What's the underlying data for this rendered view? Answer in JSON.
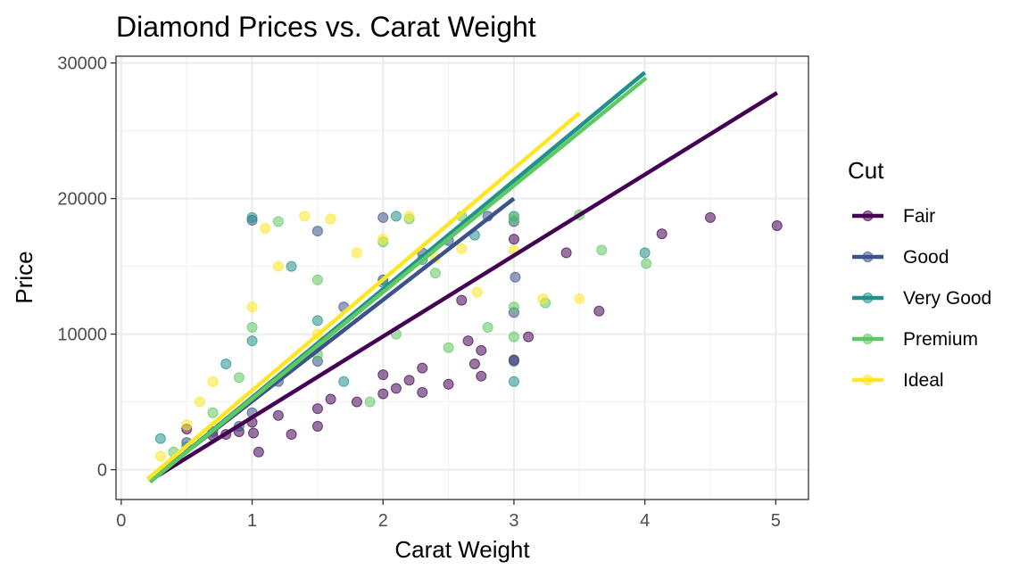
{
  "chart_data": {
    "type": "scatter",
    "title": "Diamond Prices vs. Carat Weight",
    "xlabel": "Carat Weight",
    "ylabel": "Price",
    "xlim": [
      -0.04,
      5.25
    ],
    "ylim": [
      -2200,
      30500
    ],
    "xticks": [
      0,
      1,
      2,
      3,
      4,
      5
    ],
    "yticks": [
      0,
      10000,
      20000,
      30000
    ],
    "grid": true,
    "legend": {
      "title": "Cut",
      "position": "right"
    },
    "series": [
      {
        "name": "Fair",
        "color": "#440154",
        "fit_line": [
          [
            0.22,
            -800
          ],
          [
            5.01,
            27800
          ]
        ],
        "points": [
          [
            0.5,
            3000
          ],
          [
            0.7,
            2500
          ],
          [
            0.8,
            2600
          ],
          [
            0.9,
            2800
          ],
          [
            1.0,
            3500
          ],
          [
            1.01,
            2700
          ],
          [
            1.05,
            1300
          ],
          [
            1.2,
            4000
          ],
          [
            1.3,
            2600
          ],
          [
            1.5,
            4500
          ],
          [
            1.5,
            3200
          ],
          [
            1.6,
            5200
          ],
          [
            1.8,
            5000
          ],
          [
            2.0,
            7000
          ],
          [
            2.0,
            5600
          ],
          [
            2.1,
            6000
          ],
          [
            2.2,
            6600
          ],
          [
            2.3,
            7500
          ],
          [
            2.3,
            5700
          ],
          [
            2.5,
            6300
          ],
          [
            2.6,
            12500
          ],
          [
            2.65,
            9500
          ],
          [
            2.7,
            7800
          ],
          [
            2.75,
            6900
          ],
          [
            2.75,
            8800
          ],
          [
            3.0,
            8100
          ],
          [
            3.0,
            17000
          ],
          [
            3.11,
            9800
          ],
          [
            3.4,
            16000
          ],
          [
            3.65,
            11700
          ],
          [
            4.13,
            17400
          ],
          [
            4.5,
            18600
          ],
          [
            5.01,
            18000
          ]
        ]
      },
      {
        "name": "Good",
        "color": "#3b528b",
        "fit_line": [
          [
            0.23,
            -700
          ],
          [
            3.0,
            20000
          ]
        ],
        "points": [
          [
            0.5,
            2000
          ],
          [
            0.7,
            2800
          ],
          [
            0.9,
            3200
          ],
          [
            1.0,
            4200
          ],
          [
            1.0,
            18400
          ],
          [
            1.2,
            6500
          ],
          [
            1.5,
            8000
          ],
          [
            1.5,
            17600
          ],
          [
            1.7,
            12000
          ],
          [
            2.0,
            14000
          ],
          [
            2.0,
            18600
          ],
          [
            2.3,
            16000
          ],
          [
            2.5,
            16900
          ],
          [
            2.8,
            18700
          ],
          [
            3.0,
            18300
          ],
          [
            3.0,
            11600
          ],
          [
            3.0,
            8000
          ],
          [
            3.01,
            14200
          ]
        ]
      },
      {
        "name": "Very Good",
        "color": "#21918c",
        "fit_line": [
          [
            0.22,
            -900
          ],
          [
            4.0,
            29300
          ]
        ],
        "points": [
          [
            0.3,
            2300
          ],
          [
            0.5,
            1700
          ],
          [
            0.8,
            7800
          ],
          [
            1.0,
            9500
          ],
          [
            1.0,
            18600
          ],
          [
            1.3,
            15000
          ],
          [
            1.5,
            11000
          ],
          [
            1.7,
            6500
          ],
          [
            2.0,
            13800
          ],
          [
            2.1,
            18700
          ],
          [
            2.3,
            15500
          ],
          [
            2.7,
            17300
          ],
          [
            3.0,
            6500
          ],
          [
            3.0,
            18700
          ],
          [
            4.0,
            16000
          ]
        ]
      },
      {
        "name": "Premium",
        "color": "#5ec962",
        "fit_line": [
          [
            0.22,
            -900
          ],
          [
            4.01,
            28900
          ]
        ],
        "points": [
          [
            0.4,
            1300
          ],
          [
            0.7,
            4200
          ],
          [
            0.9,
            6800
          ],
          [
            1.0,
            10500
          ],
          [
            1.2,
            18300
          ],
          [
            1.5,
            14000
          ],
          [
            1.5,
            8500
          ],
          [
            1.9,
            5000
          ],
          [
            2.0,
            16800
          ],
          [
            2.1,
            10000
          ],
          [
            2.2,
            18500
          ],
          [
            2.4,
            14500
          ],
          [
            2.5,
            9000
          ],
          [
            2.6,
            18700
          ],
          [
            2.8,
            10500
          ],
          [
            3.0,
            9800
          ],
          [
            3.0,
            12000
          ],
          [
            3.0,
            18500
          ],
          [
            3.24,
            12300
          ],
          [
            3.5,
            18800
          ],
          [
            3.67,
            16200
          ],
          [
            4.01,
            15200
          ]
        ]
      },
      {
        "name": "Ideal",
        "color": "#fde725",
        "fit_line": [
          [
            0.2,
            -700
          ],
          [
            3.5,
            26300
          ]
        ],
        "points": [
          [
            0.3,
            1000
          ],
          [
            0.5,
            3300
          ],
          [
            0.6,
            5000
          ],
          [
            0.7,
            6500
          ],
          [
            1.0,
            12000
          ],
          [
            1.1,
            17800
          ],
          [
            1.2,
            15000
          ],
          [
            1.4,
            18700
          ],
          [
            1.5,
            10000
          ],
          [
            1.6,
            18500
          ],
          [
            1.8,
            16000
          ],
          [
            2.0,
            17000
          ],
          [
            2.2,
            18700
          ],
          [
            2.4,
            15600
          ],
          [
            2.6,
            16300
          ],
          [
            2.72,
            13100
          ],
          [
            3.0,
            16200
          ],
          [
            3.22,
            12600
          ],
          [
            3.5,
            12600
          ]
        ]
      }
    ]
  }
}
